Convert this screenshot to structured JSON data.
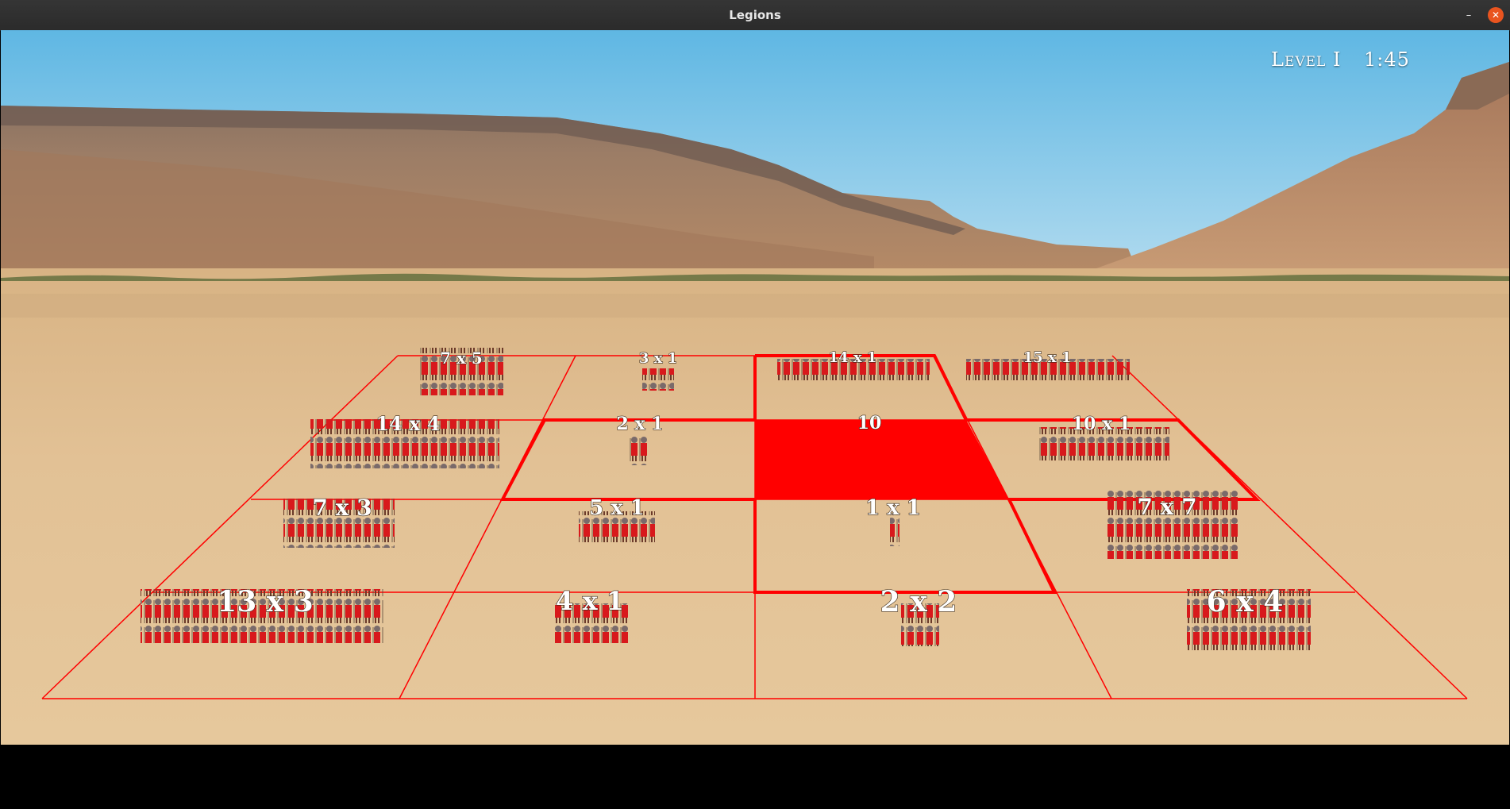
{
  "window": {
    "title": "Legions"
  },
  "hud": {
    "level": "Level I",
    "timer": "1:45"
  },
  "board": {
    "highlight_color": "#ff0000",
    "selected_cell_value": "10",
    "formations": [
      {
        "label": "7 x 5"
      },
      {
        "label": "3 x 1"
      },
      {
        "label": "14 x 1"
      },
      {
        "label": "15 x 1"
      },
      {
        "label": "14 x 4"
      },
      {
        "label": "2 x 1"
      },
      {
        "label": "10 x 1"
      },
      {
        "label": "7 x 3"
      },
      {
        "label": "5 x 1"
      },
      {
        "label": "1 x 1"
      },
      {
        "label": "7 x 7"
      },
      {
        "label": "13 x 3"
      },
      {
        "label": "4 x 1"
      },
      {
        "label": "2 x 2"
      },
      {
        "label": "6 x 4"
      }
    ]
  }
}
